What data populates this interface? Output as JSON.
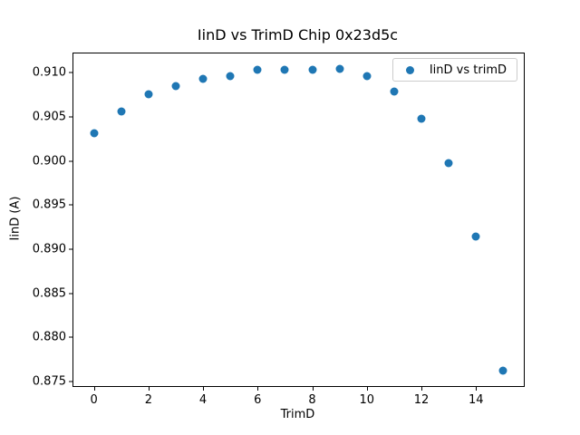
{
  "chart_data": {
    "type": "scatter",
    "title": "IinD vs TrimD Chip 0x23d5c",
    "xlabel": "TrimD",
    "ylabel": "IinD (A)",
    "legend_label": "IinD vs trimD",
    "legend_position": "upper right",
    "marker_color": "#1f77b4",
    "grid": false,
    "x": [
      0,
      1,
      2,
      3,
      4,
      5,
      6,
      7,
      8,
      9,
      10,
      11,
      12,
      13,
      14,
      15
    ],
    "y": [
      0.9032,
      0.9056,
      0.9076,
      0.9085,
      0.9093,
      0.9096,
      0.9104,
      0.9104,
      0.9104,
      0.9105,
      0.9096,
      0.9079,
      0.9048,
      0.8998,
      0.8915,
      0.8762
    ],
    "xticks": [
      0,
      2,
      4,
      6,
      8,
      10,
      12,
      14
    ],
    "yticks": [
      0.875,
      0.88,
      0.885,
      0.89,
      0.895,
      0.9,
      0.905,
      0.91
    ],
    "xlim": [
      -0.75,
      15.75
    ],
    "ylim": [
      0.8745,
      0.9122
    ]
  }
}
